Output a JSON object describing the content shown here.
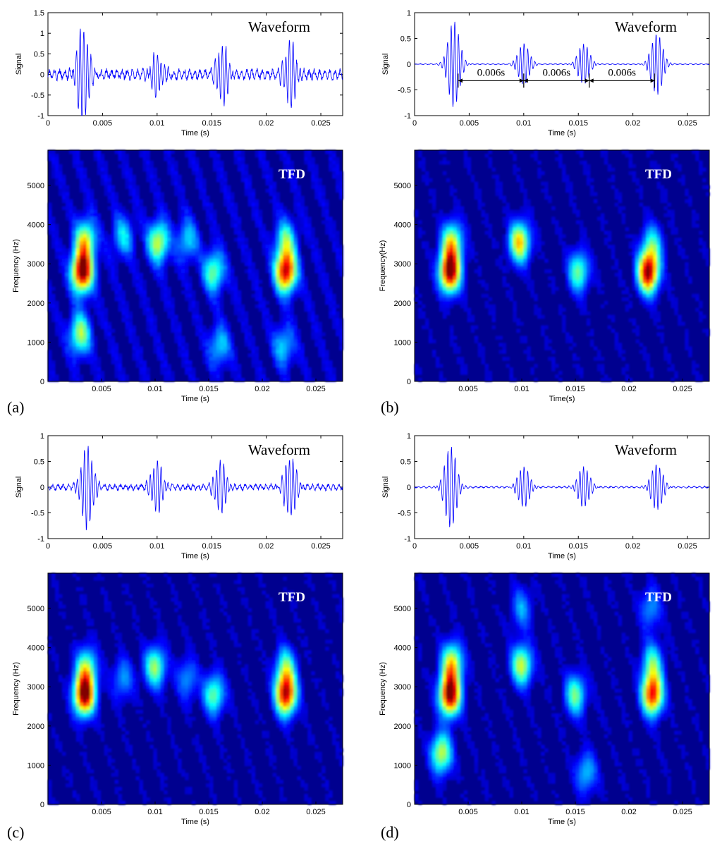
{
  "panels": [
    {
      "label": "(a)",
      "waveform": {
        "title": "Waveform",
        "xlabel": "Time (s)",
        "ylabel": "Signal",
        "xticks": [
          "0",
          "0.005",
          "0.01",
          "0.015",
          "0.02",
          "0.025"
        ],
        "yticks": [
          "1.5",
          "1",
          "0.5",
          "0",
          "-0.5",
          "-1"
        ]
      },
      "tfd": {
        "title": "TFD",
        "xlabel": "Time (s)",
        "ylabel": "Frequency (Hz)",
        "xticks": [
          "0.005",
          "0.01",
          "0.015",
          "0.02",
          "0.025"
        ],
        "yticks": [
          "5000",
          "4000",
          "3000",
          "2000",
          "1000",
          "0"
        ]
      }
    },
    {
      "label": "(b)",
      "waveform": {
        "title": "Waveform",
        "xlabel": "Time (s)",
        "ylabel": "Signal",
        "xticks": [
          "0",
          "0.005",
          "0.01",
          "0.015",
          "0.02",
          "0.025"
        ],
        "yticks": [
          "1",
          "0.5",
          "0",
          "-0.5",
          "-1"
        ],
        "annotations": [
          "0.006s",
          "0.006s",
          "0.006s"
        ]
      },
      "tfd": {
        "title": "TFD",
        "xlabel": "Time(s)",
        "ylabel": "Frequency(Hz)",
        "xticks": [
          "0.005",
          "0.01",
          "0.015",
          "0.02",
          "0.025"
        ],
        "yticks": [
          "5000",
          "4000",
          "3000",
          "2000",
          "1000",
          "0"
        ]
      }
    },
    {
      "label": "(c)",
      "waveform": {
        "title": "Waveform",
        "xlabel": "Time (s)",
        "ylabel": "Signal",
        "xticks": [
          "0",
          "0.005",
          "0.01",
          "0.015",
          "0.02",
          "0.025"
        ],
        "yticks": [
          "1",
          "0.5",
          "0",
          "-0.5",
          "-1"
        ]
      },
      "tfd": {
        "title": "TFD",
        "xlabel": "Time (s)",
        "ylabel": "Frequency (Hz)",
        "xticks": [
          "0.005",
          "0.01",
          "0.015",
          "0.02",
          "0.025"
        ],
        "yticks": [
          "5000",
          "4000",
          "3000",
          "2000",
          "1000",
          "0"
        ]
      }
    },
    {
      "label": "(d)",
      "waveform": {
        "title": "Waveform",
        "xlabel": "Time (s)",
        "ylabel": "Signal",
        "xticks": [
          "0",
          "0.005",
          "0.01",
          "0.015",
          "0.02",
          "0.025"
        ],
        "yticks": [
          "1",
          "0.5",
          "0",
          "-0.5",
          "-1"
        ]
      },
      "tfd": {
        "title": "TFD",
        "xlabel": "Time (s)",
        "ylabel": "Frequency (Hz)",
        "xticks": [
          "0.005",
          "0.01",
          "0.015",
          "0.02",
          "0.025"
        ],
        "yticks": [
          "5000",
          "4000",
          "3000",
          "2000",
          "1000",
          "0"
        ]
      }
    }
  ],
  "chart_data": [
    {
      "type": "line",
      "panel": "(a)",
      "plot": "Waveform",
      "xlabel": "Time (s)",
      "ylabel": "Signal",
      "xlim": [
        0,
        0.027
      ],
      "ylim": [
        -1,
        1.5
      ],
      "bursts": [
        {
          "t": 0.0032,
          "amp": 1.15
        },
        {
          "t": 0.01,
          "amp": 0.5
        },
        {
          "t": 0.016,
          "amp": 0.7
        },
        {
          "t": 0.0222,
          "amp": 0.8
        }
      ],
      "noise_level": 0.15,
      "color": "#0000ff"
    },
    {
      "type": "heatmap",
      "panel": "(a)",
      "plot": "TFD",
      "xlabel": "Time (s)",
      "ylabel": "Frequency (Hz)",
      "xlim": [
        0,
        0.0275
      ],
      "ylim": [
        0,
        5900
      ],
      "background": "#00008f",
      "background_level": 0.18,
      "blobs": [
        {
          "t": 0.0032,
          "f": 2800,
          "amp": 1.0
        },
        {
          "t": 0.0035,
          "f": 3600,
          "amp": 0.55
        },
        {
          "t": 0.003,
          "f": 1200,
          "amp": 0.5
        },
        {
          "t": 0.0103,
          "f": 3550,
          "amp": 0.55
        },
        {
          "t": 0.0155,
          "f": 2800,
          "amp": 0.45
        },
        {
          "t": 0.0222,
          "f": 2800,
          "amp": 0.9
        },
        {
          "t": 0.0222,
          "f": 3600,
          "amp": 0.4
        },
        {
          "t": 0.016,
          "f": 900,
          "amp": 0.3
        },
        {
          "t": 0.022,
          "f": 900,
          "amp": 0.3
        },
        {
          "t": 0.007,
          "f": 3700,
          "amp": 0.3
        },
        {
          "t": 0.013,
          "f": 3600,
          "amp": 0.3
        }
      ]
    },
    {
      "type": "line",
      "panel": "(b)",
      "plot": "Waveform",
      "xlabel": "Time (s)",
      "ylabel": "Signal",
      "xlim": [
        0,
        0.027
      ],
      "ylim": [
        -1,
        1
      ],
      "bursts": [
        {
          "t": 0.0036,
          "amp": 0.85
        },
        {
          "t": 0.01,
          "amp": 0.4
        },
        {
          "t": 0.0155,
          "amp": 0.4
        },
        {
          "t": 0.0222,
          "amp": 0.6
        }
      ],
      "noise_level": 0.01,
      "color": "#0000ff",
      "annotation_intervals": [
        [
          0.004,
          0.01
        ],
        [
          0.01,
          0.016
        ],
        [
          0.016,
          0.022
        ]
      ]
    },
    {
      "type": "heatmap",
      "panel": "(b)",
      "plot": "TFD",
      "xlabel": "Time(s)",
      "ylabel": "Frequency(Hz)",
      "xlim": [
        0,
        0.0275
      ],
      "ylim": [
        0,
        5900
      ],
      "background": "#00008f",
      "background_level": 0.12,
      "blobs": [
        {
          "t": 0.0033,
          "f": 2800,
          "amp": 1.0
        },
        {
          "t": 0.0035,
          "f": 3550,
          "amp": 0.55
        },
        {
          "t": 0.0098,
          "f": 3550,
          "amp": 0.65
        },
        {
          "t": 0.0153,
          "f": 2800,
          "amp": 0.45
        },
        {
          "t": 0.0218,
          "f": 2780,
          "amp": 0.95
        },
        {
          "t": 0.0222,
          "f": 3500,
          "amp": 0.35
        }
      ]
    },
    {
      "type": "line",
      "panel": "(c)",
      "plot": "Waveform",
      "xlabel": "Time (s)",
      "ylabel": "Signal",
      "xlim": [
        0,
        0.027
      ],
      "ylim": [
        -1,
        1
      ],
      "bursts": [
        {
          "t": 0.0036,
          "amp": 0.8
        },
        {
          "t": 0.01,
          "amp": 0.5
        },
        {
          "t": 0.0158,
          "amp": 0.5
        },
        {
          "t": 0.0222,
          "amp": 0.6
        }
      ],
      "noise_level": 0.07,
      "color": "#0000ff"
    },
    {
      "type": "heatmap",
      "panel": "(c)",
      "plot": "TFD",
      "xlabel": "Time (s)",
      "ylabel": "Frequency (Hz)",
      "xlim": [
        0,
        0.0275
      ],
      "ylim": [
        0,
        5900
      ],
      "background": "#00008f",
      "background_level": 0.12,
      "blobs": [
        {
          "t": 0.0034,
          "f": 2800,
          "amp": 1.0
        },
        {
          "t": 0.0036,
          "f": 3500,
          "amp": 0.45
        },
        {
          "t": 0.01,
          "f": 3500,
          "amp": 0.5
        },
        {
          "t": 0.0155,
          "f": 2800,
          "amp": 0.45
        },
        {
          "t": 0.0222,
          "f": 2800,
          "amp": 0.9
        },
        {
          "t": 0.0222,
          "f": 3500,
          "amp": 0.4
        },
        {
          "t": 0.007,
          "f": 3200,
          "amp": 0.25
        },
        {
          "t": 0.013,
          "f": 3200,
          "amp": 0.25
        }
      ]
    },
    {
      "type": "line",
      "panel": "(d)",
      "plot": "Waveform",
      "xlabel": "Time (s)",
      "ylabel": "Signal",
      "xlim": [
        0,
        0.027
      ],
      "ylim": [
        -1,
        1
      ],
      "bursts": [
        {
          "t": 0.0033,
          "amp": 0.8
        },
        {
          "t": 0.01,
          "amp": 0.4
        },
        {
          "t": 0.0155,
          "amp": 0.4
        },
        {
          "t": 0.0222,
          "amp": 0.45
        }
      ],
      "noise_level": 0.02,
      "color": "#0000ff"
    },
    {
      "type": "heatmap",
      "panel": "(d)",
      "plot": "TFD",
      "xlabel": "Time (s)",
      "ylabel": "Frequency (Hz)",
      "xlim": [
        0,
        0.0275
      ],
      "ylim": [
        0,
        5900
      ],
      "background": "#00008f",
      "background_level": 0.12,
      "blobs": [
        {
          "t": 0.0033,
          "f": 2800,
          "amp": 1.0
        },
        {
          "t": 0.0035,
          "f": 3600,
          "amp": 0.6
        },
        {
          "t": 0.0025,
          "f": 1300,
          "amp": 0.55
        },
        {
          "t": 0.01,
          "f": 3550,
          "amp": 0.55
        },
        {
          "t": 0.015,
          "f": 2800,
          "amp": 0.45
        },
        {
          "t": 0.0222,
          "f": 2800,
          "amp": 0.85
        },
        {
          "t": 0.0222,
          "f": 3600,
          "amp": 0.4
        },
        {
          "t": 0.016,
          "f": 800,
          "amp": 0.3
        },
        {
          "t": 0.01,
          "f": 5000,
          "amp": 0.25
        },
        {
          "t": 0.022,
          "f": 5000,
          "amp": 0.25
        }
      ]
    }
  ],
  "colormap": [
    "#00008f",
    "#0000ff",
    "#0080ff",
    "#00ffff",
    "#80ff80",
    "#ffff00",
    "#ff8000",
    "#ff0000",
    "#800000"
  ]
}
